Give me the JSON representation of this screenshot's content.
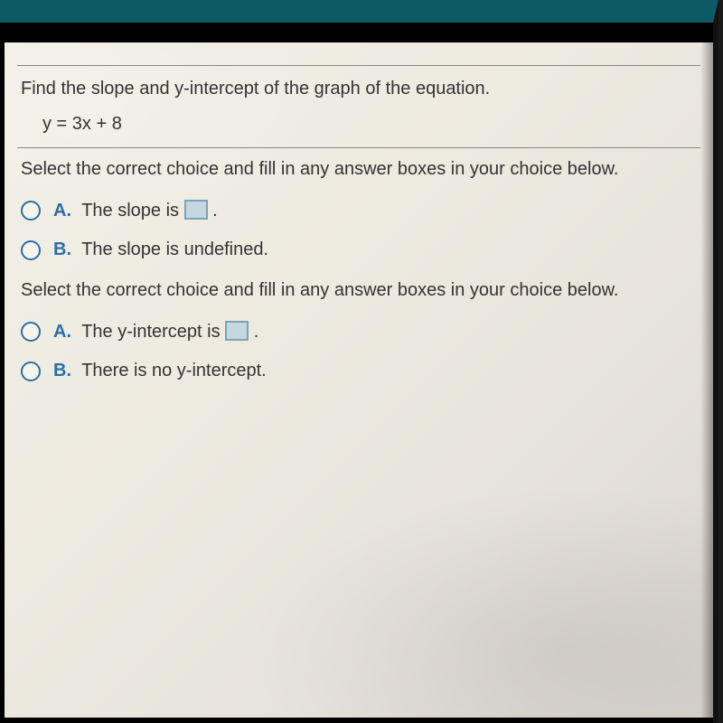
{
  "colors": {
    "header_bar": "#0e5a64",
    "paper_bg": "#edeae0",
    "rule": "#8a887e",
    "text": "#333333",
    "accent": "#2b6ea8",
    "answer_box_bg": "#c5d8e0",
    "answer_box_border": "#7aa3b7"
  },
  "question": "Find the slope and y-intercept of the graph of the equation.",
  "equation": "y = 3x + 8",
  "instruction": "Select the correct choice and fill in any answer boxes in your choice below.",
  "group1": {
    "a": {
      "letter": "A.",
      "before": "The slope is ",
      "after": "."
    },
    "b": {
      "letter": "B.",
      "text": "The slope is undefined."
    }
  },
  "group2": {
    "a": {
      "letter": "A.",
      "before": "The y-intercept is ",
      "after": "."
    },
    "b": {
      "letter": "B.",
      "text": "There is no y-intercept."
    }
  }
}
